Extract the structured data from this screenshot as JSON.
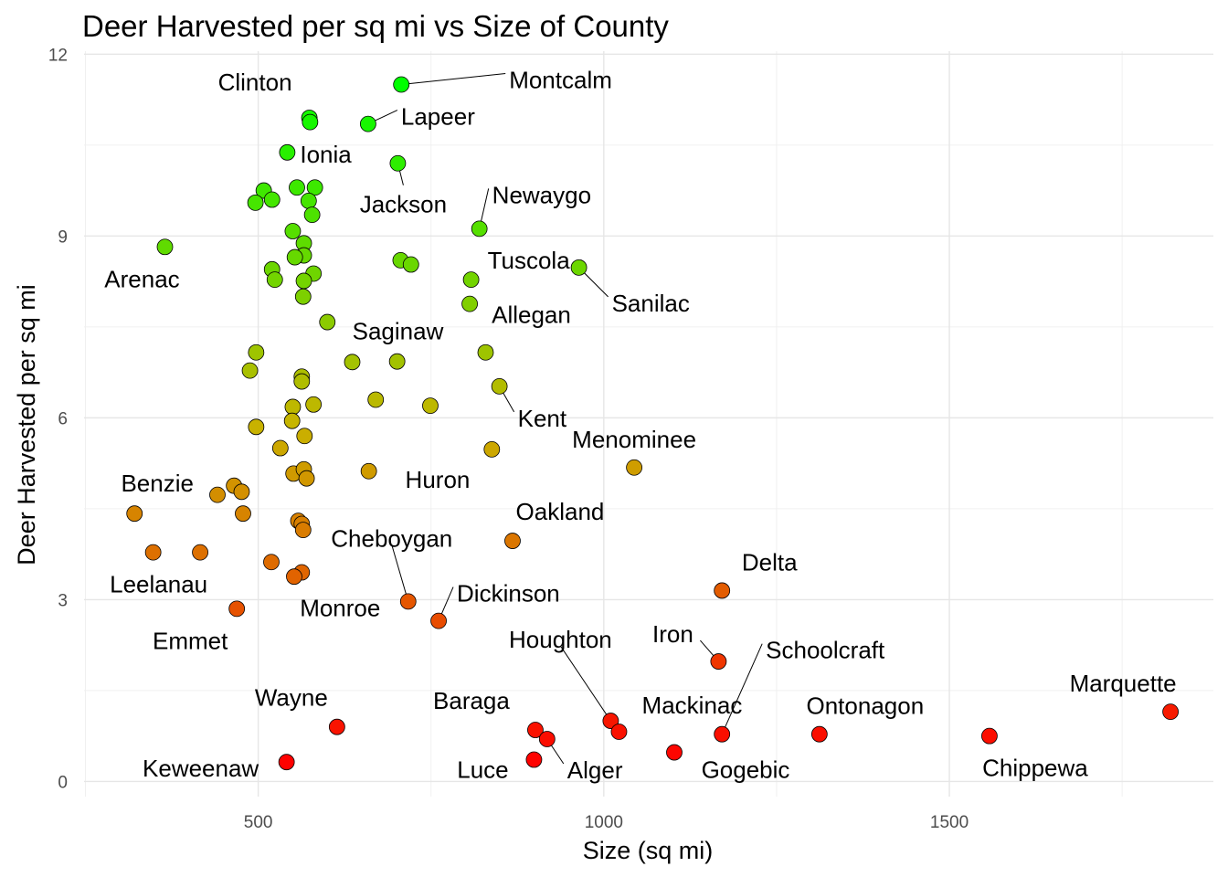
{
  "chart_data": {
    "type": "scatter",
    "title": "Deer Harvested per sq mi vs Size of County",
    "xlabel": "Size (sq mi)",
    "ylabel": "Deer Harvested per sq mi",
    "xlim": [
      248,
      1882
    ],
    "ylim": [
      -0.25,
      12.05
    ],
    "x_ticks": [
      500,
      1000,
      1500
    ],
    "x_minor": [
      250,
      750,
      1250,
      1750
    ],
    "y_ticks": [
      0,
      3,
      6,
      9,
      12
    ],
    "y_minor": [
      1.5,
      4.5,
      7.5,
      10.5
    ],
    "grid": true,
    "color_scale": {
      "low": "#ff0000",
      "mid": "#c8b400",
      "high": "#00ff00",
      "variable": "Deer Harvested per sq mi"
    },
    "points": [
      {
        "x": 707,
        "y": 11.5,
        "label": "Montcalm"
      },
      {
        "x": 574,
        "y": 10.95,
        "label": "Clinton"
      },
      {
        "x": 575,
        "y": 10.88,
        "label": ""
      },
      {
        "x": 659,
        "y": 10.85,
        "label": "Lapeer"
      },
      {
        "x": 542,
        "y": 10.38,
        "label": "Ionia"
      },
      {
        "x": 702,
        "y": 10.2,
        "label": "Jackson"
      },
      {
        "x": 508,
        "y": 9.75,
        "label": ""
      },
      {
        "x": 496,
        "y": 9.55,
        "label": ""
      },
      {
        "x": 520,
        "y": 9.6,
        "label": ""
      },
      {
        "x": 556,
        "y": 9.8,
        "label": ""
      },
      {
        "x": 582,
        "y": 9.8,
        "label": ""
      },
      {
        "x": 573,
        "y": 9.58,
        "label": ""
      },
      {
        "x": 578,
        "y": 9.35,
        "label": ""
      },
      {
        "x": 550,
        "y": 9.08,
        "label": ""
      },
      {
        "x": 820,
        "y": 9.12,
        "label": "Newaygo"
      },
      {
        "x": 365,
        "y": 8.82,
        "label": "Arenac"
      },
      {
        "x": 566,
        "y": 8.88,
        "label": ""
      },
      {
        "x": 566,
        "y": 8.68,
        "label": ""
      },
      {
        "x": 553,
        "y": 8.65,
        "label": ""
      },
      {
        "x": 580,
        "y": 8.38,
        "label": ""
      },
      {
        "x": 520,
        "y": 8.45,
        "label": ""
      },
      {
        "x": 524,
        "y": 8.28,
        "label": ""
      },
      {
        "x": 566,
        "y": 8.26,
        "label": ""
      },
      {
        "x": 565,
        "y": 8.0,
        "label": ""
      },
      {
        "x": 706,
        "y": 8.6,
        "label": ""
      },
      {
        "x": 721,
        "y": 8.53,
        "label": ""
      },
      {
        "x": 808,
        "y": 8.28,
        "label": "Tuscola"
      },
      {
        "x": 964,
        "y": 8.48,
        "label": "Sanilac"
      },
      {
        "x": 806,
        "y": 7.88,
        "label": ""
      },
      {
        "x": 600,
        "y": 7.58,
        "label": ""
      },
      {
        "x": 636,
        "y": 6.92,
        "label": "Saginaw"
      },
      {
        "x": 701,
        "y": 6.93,
        "label": ""
      },
      {
        "x": 829,
        "y": 7.08,
        "label": "Allegan"
      },
      {
        "x": 497,
        "y": 7.08,
        "label": ""
      },
      {
        "x": 488,
        "y": 6.78,
        "label": ""
      },
      {
        "x": 563,
        "y": 6.68,
        "label": ""
      },
      {
        "x": 563,
        "y": 6.6,
        "label": ""
      },
      {
        "x": 580,
        "y": 6.22,
        "label": ""
      },
      {
        "x": 550,
        "y": 6.18,
        "label": ""
      },
      {
        "x": 549,
        "y": 5.95,
        "label": ""
      },
      {
        "x": 670,
        "y": 6.3,
        "label": ""
      },
      {
        "x": 749,
        "y": 6.2,
        "label": "Huron"
      },
      {
        "x": 849,
        "y": 6.52,
        "label": "Kent"
      },
      {
        "x": 497,
        "y": 5.85,
        "label": ""
      },
      {
        "x": 567,
        "y": 5.7,
        "label": ""
      },
      {
        "x": 532,
        "y": 5.5,
        "label": ""
      },
      {
        "x": 838,
        "y": 5.48,
        "label": ""
      },
      {
        "x": 1044,
        "y": 5.18,
        "label": "Menominee"
      },
      {
        "x": 551,
        "y": 5.08,
        "label": ""
      },
      {
        "x": 566,
        "y": 5.15,
        "label": ""
      },
      {
        "x": 570,
        "y": 5.0,
        "label": ""
      },
      {
        "x": 660,
        "y": 5.12,
        "label": ""
      },
      {
        "x": 465,
        "y": 4.88,
        "label": ""
      },
      {
        "x": 441,
        "y": 4.73,
        "label": ""
      },
      {
        "x": 476,
        "y": 4.78,
        "label": ""
      },
      {
        "x": 321,
        "y": 4.42,
        "label": "Benzie"
      },
      {
        "x": 478,
        "y": 4.42,
        "label": ""
      },
      {
        "x": 558,
        "y": 4.3,
        "label": ""
      },
      {
        "x": 563,
        "y": 4.25,
        "label": ""
      },
      {
        "x": 565,
        "y": 4.15,
        "label": ""
      },
      {
        "x": 868,
        "y": 3.97,
        "label": "Oakland"
      },
      {
        "x": 348,
        "y": 3.78,
        "label": "Leelanau"
      },
      {
        "x": 416,
        "y": 3.78,
        "label": ""
      },
      {
        "x": 519,
        "y": 3.62,
        "label": ""
      },
      {
        "x": 563,
        "y": 3.45,
        "label": "Monroe"
      },
      {
        "x": 552,
        "y": 3.38,
        "label": ""
      },
      {
        "x": 717,
        "y": 2.97,
        "label": "Cheboygan"
      },
      {
        "x": 469,
        "y": 2.85,
        "label": "Emmet"
      },
      {
        "x": 761,
        "y": 2.65,
        "label": "Dickinson"
      },
      {
        "x": 1171,
        "y": 3.15,
        "label": "Delta"
      },
      {
        "x": 1166,
        "y": 1.98,
        "label": "Iron"
      },
      {
        "x": 1171,
        "y": 0.78,
        "label": "Schoolcraft"
      },
      {
        "x": 1010,
        "y": 1.0,
        "label": "Houghton"
      },
      {
        "x": 1022,
        "y": 0.82,
        "label": "Mackinac"
      },
      {
        "x": 901,
        "y": 0.85,
        "label": "Baraga"
      },
      {
        "x": 918,
        "y": 0.7,
        "label": "Alger"
      },
      {
        "x": 899,
        "y": 0.36,
        "label": "Luce"
      },
      {
        "x": 1102,
        "y": 0.48,
        "label": "Gogebic"
      },
      {
        "x": 1312,
        "y": 0.78,
        "label": "Ontonagon"
      },
      {
        "x": 1558,
        "y": 0.75,
        "label": "Chippewa"
      },
      {
        "x": 1820,
        "y": 1.15,
        "label": "Marquette"
      },
      {
        "x": 614,
        "y": 0.9,
        "label": "Wayne"
      },
      {
        "x": 541,
        "y": 0.32,
        "label": "Keweenaw"
      }
    ]
  }
}
